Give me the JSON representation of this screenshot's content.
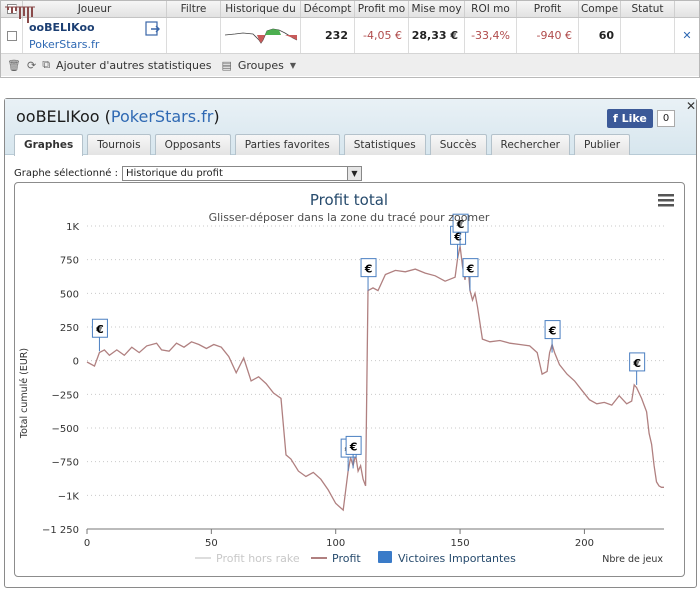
{
  "stats_table": {
    "headers": [
      "Joueur",
      "Filtre",
      "Historique du",
      "Décompt",
      "Profit mo",
      "Mise moy",
      "ROI mo",
      "Profit",
      "Compe",
      "Statut"
    ],
    "row": {
      "player": "ooBELIKoo",
      "site": "PokerStars.fr",
      "decompte": "232",
      "profit_moyen": "-4,05 €",
      "mise_moyenne": "28,33 €",
      "roi_moyen": "-33,4%",
      "profit": "-940 €",
      "competences": "60"
    },
    "toolbar": {
      "add_stats": "Ajouter d'autres statistiques",
      "groups": "Groupes"
    }
  },
  "popup": {
    "player": "ooBELIKoo",
    "site": "PokerStars.fr",
    "like_label": "Like",
    "like_count": "0",
    "tabs": [
      "Graphes",
      "Tournois",
      "Opposants",
      "Parties favorites",
      "Statistiques",
      "Succès",
      "Rechercher",
      "Publier"
    ],
    "graph_label": "Graphe sélectionné :",
    "graph_value": "Historique du profit"
  },
  "chart_data": {
    "type": "line",
    "title": "Profit total",
    "subtitle": "Glisser-déposer dans la zone du tracé pour zoomer",
    "ylabel": "Total cumulé (EUR)",
    "xlabel": "Nbre de jeux",
    "xlim": [
      0,
      232
    ],
    "ylim": [
      -1250,
      1000
    ],
    "x_ticks": [
      "0",
      "50",
      "100",
      "150",
      "200"
    ],
    "y_ticks": [
      "1K",
      "750",
      "500",
      "250",
      "0",
      "−250",
      "−500",
      "−750",
      "−1K",
      "−1 250"
    ],
    "grid": "horizontal dotted",
    "legend": [
      "Profit hors rake",
      "Profit",
      "Victoires Importantes"
    ],
    "legend_placement": "bottom",
    "series": [
      {
        "name": "Profit",
        "color": "#b08080",
        "x": [
          0,
          3,
          5,
          7,
          9,
          12,
          15,
          18,
          21,
          24,
          28,
          30,
          33,
          36,
          39,
          42,
          45,
          48,
          51,
          54,
          57,
          60,
          63,
          66,
          69,
          72,
          75,
          78,
          80,
          82,
          85,
          88,
          91,
          94,
          97,
          100,
          103,
          105,
          106,
          107,
          108,
          109,
          110,
          111,
          112,
          113,
          115,
          117,
          120,
          124,
          128,
          132,
          136,
          140,
          144,
          148,
          149,
          150,
          151,
          152,
          153,
          154,
          155,
          156,
          157,
          159,
          162,
          166,
          170,
          174,
          178,
          181,
          183,
          185,
          186,
          187,
          188,
          190,
          193,
          196,
          199,
          202,
          205,
          208,
          211,
          214,
          217,
          219,
          220,
          221,
          222,
          223,
          224,
          225,
          226,
          227,
          228,
          229,
          230,
          231,
          232
        ],
        "values": [
          -10,
          -40,
          60,
          80,
          40,
          80,
          40,
          100,
          60,
          110,
          130,
          80,
          70,
          130,
          100,
          140,
          120,
          90,
          120,
          100,
          30,
          -90,
          20,
          -150,
          -120,
          -170,
          -240,
          -280,
          -700,
          -730,
          -820,
          -860,
          -830,
          -880,
          -960,
          -1060,
          -1110,
          -820,
          -720,
          -780,
          -700,
          -820,
          -780,
          -880,
          -930,
          520,
          540,
          520,
          640,
          670,
          660,
          680,
          650,
          630,
          590,
          620,
          760,
          850,
          700,
          600,
          750,
          520,
          450,
          500,
          400,
          160,
          140,
          150,
          130,
          120,
          110,
          60,
          -100,
          -80,
          60,
          120,
          60,
          -30,
          -100,
          -150,
          -220,
          -290,
          -320,
          -310,
          -330,
          -260,
          -320,
          -300,
          -180,
          -200,
          -240,
          -280,
          -330,
          -380,
          -540,
          -620,
          -780,
          -900,
          -930,
          -940,
          -940
        ]
      }
    ],
    "flags": [
      {
        "x": 5,
        "y": 70,
        "label": "€"
      },
      {
        "x": 105,
        "y": -820,
        "label": "€"
      },
      {
        "x": 107,
        "y": -800,
        "label": "€"
      },
      {
        "x": 113,
        "y": 520,
        "label": "€"
      },
      {
        "x": 149,
        "y": 760,
        "label": "€"
      },
      {
        "x": 150,
        "y": 850,
        "label": "€"
      },
      {
        "x": 154,
        "y": 520,
        "label": "€"
      },
      {
        "x": 187,
        "y": 60,
        "label": "€"
      },
      {
        "x": 221,
        "y": -180,
        "label": "€"
      }
    ]
  }
}
